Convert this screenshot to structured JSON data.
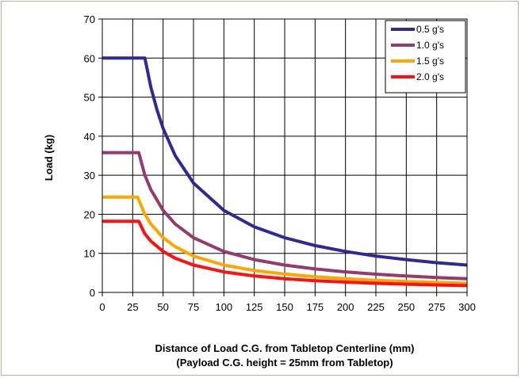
{
  "chart_data": {
    "type": "line",
    "title": "",
    "xlabel_line1": "Distance of Load C.G. from Tabletop Centerline (mm)",
    "xlabel_line2": "(Payload C.G. height = 25mm from Tabletop)",
    "ylabel": "Load (kg)",
    "xlim": [
      0,
      300
    ],
    "ylim": [
      0,
      70
    ],
    "xticks": [
      0,
      25,
      50,
      75,
      100,
      125,
      150,
      175,
      200,
      225,
      250,
      275,
      300
    ],
    "yticks": [
      0,
      10,
      20,
      30,
      40,
      50,
      60,
      70
    ],
    "grid": true,
    "legend_position": "top-right",
    "series": [
      {
        "name": "0.5 g's",
        "color": "#2e2a94",
        "x": [
          0,
          35,
          40,
          45,
          50,
          60,
          75,
          100,
          125,
          150,
          175,
          200,
          225,
          250,
          275,
          300
        ],
        "values": [
          60,
          60,
          52.5,
          46.7,
          42.0,
          35.0,
          28.0,
          21.0,
          16.8,
          14.0,
          12.0,
          10.5,
          9.3,
          8.4,
          7.6,
          7.0
        ]
      },
      {
        "name": "1.0 g's",
        "color": "#953a6e",
        "x": [
          0,
          30,
          35,
          40,
          50,
          60,
          75,
          100,
          125,
          150,
          175,
          200,
          225,
          250,
          275,
          300
        ],
        "values": [
          35.8,
          35.8,
          30.0,
          26.3,
          21.0,
          17.5,
          14.0,
          10.5,
          8.4,
          7.0,
          6.0,
          5.25,
          4.67,
          4.2,
          3.8,
          3.5
        ]
      },
      {
        "name": "1.5 g's",
        "color": "#ffa500",
        "x": [
          0,
          29,
          35,
          40,
          50,
          60,
          75,
          100,
          125,
          150,
          175,
          200,
          225,
          250,
          275,
          300
        ],
        "values": [
          24.4,
          24.4,
          20.0,
          17.5,
          14.0,
          11.7,
          9.3,
          7.0,
          5.6,
          4.7,
          4.0,
          3.5,
          3.1,
          2.8,
          2.55,
          2.33
        ]
      },
      {
        "name": "2.0 g's",
        "color": "#ff1010",
        "x": [
          0,
          30,
          35,
          40,
          50,
          60,
          75,
          100,
          125,
          150,
          175,
          200,
          225,
          250,
          275,
          300
        ],
        "values": [
          18.2,
          18.2,
          15.0,
          13.1,
          10.5,
          8.75,
          7.0,
          5.25,
          4.2,
          3.5,
          3.0,
          2.63,
          2.33,
          2.1,
          1.9,
          1.75
        ]
      }
    ]
  }
}
